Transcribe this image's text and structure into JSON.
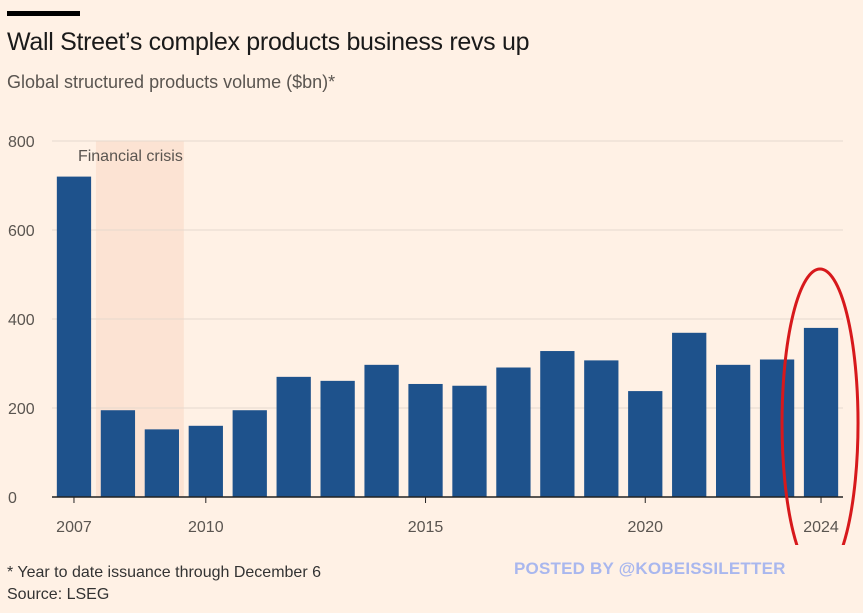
{
  "header": {
    "title": "Wall Street’s complex products business revs up",
    "subtitle": "Global structured products volume ($bn)*"
  },
  "footer": {
    "footnote": "* Year to date issuance through December 6",
    "source": "Source: LSEG",
    "watermark": "POSTED BY @KOBEISSILETTER"
  },
  "colors": {
    "bar": "#1E528C",
    "background": "#FFF1E5",
    "shade": "#FCE3D3",
    "annotation_circle": "#D7191C"
  },
  "chart_data": {
    "type": "bar",
    "title": "Wall Street’s complex products business revs up",
    "subtitle": "Global structured products volume ($bn)*",
    "xlabel": "",
    "ylabel": "",
    "categories": [
      "2007",
      "2008",
      "2009",
      "2010",
      "2011",
      "2012",
      "2013",
      "2014",
      "2015",
      "2016",
      "2017",
      "2018",
      "2019",
      "2020",
      "2021",
      "2022",
      "2023",
      "2024"
    ],
    "values": [
      720,
      195,
      152,
      160,
      195,
      270,
      261,
      297,
      254,
      250,
      291,
      328,
      307,
      238,
      369,
      297,
      309,
      380
    ],
    "ylim": [
      0,
      800
    ],
    "yticks": [
      0,
      200,
      400,
      600,
      800
    ],
    "xtick_labels": [
      "2007",
      "2010",
      "2015",
      "2020",
      "2024"
    ],
    "grid": "horizontal",
    "shaded_region": {
      "label": "Financial crisis",
      "from": "2008",
      "to": "2009"
    },
    "highlight": {
      "category": "2024",
      "shape": "ellipse"
    }
  }
}
